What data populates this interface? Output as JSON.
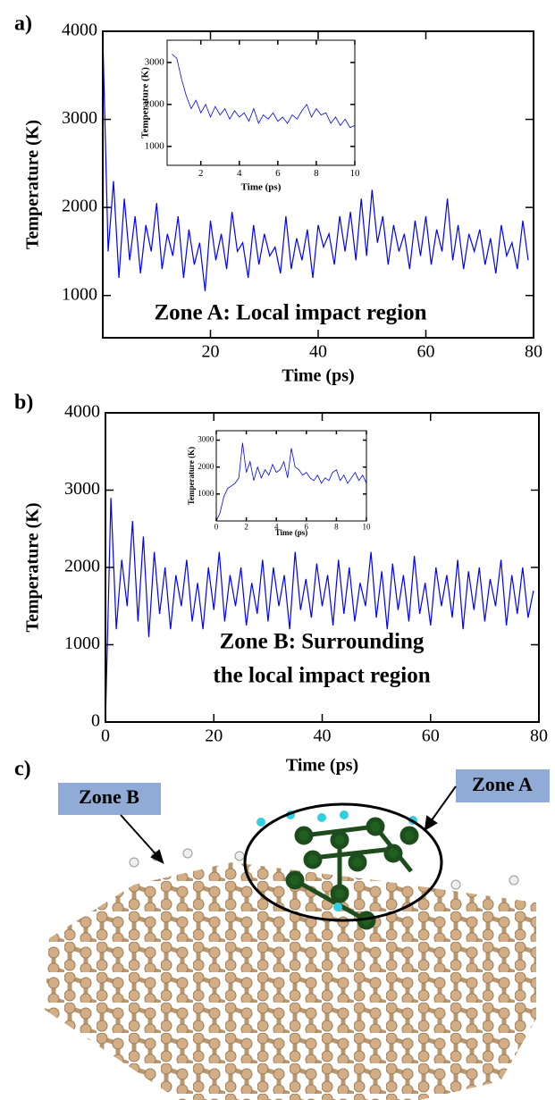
{
  "chart_data": [
    {
      "type": "line",
      "label": "a)",
      "y_label": "Temperature (K)",
      "x_label": "Time (ps)",
      "annotation": "Zone A: Local impact region",
      "color": "#0000ff",
      "xlim": [
        0,
        80
      ],
      "xticks": [
        20,
        40,
        60,
        80
      ],
      "ylim": [
        520,
        4000
      ],
      "yticks": [
        1000,
        2000,
        3000,
        4000
      ],
      "x": [
        0,
        1,
        2,
        3,
        4,
        5,
        6,
        7,
        8,
        9,
        10,
        11,
        12,
        13,
        14,
        15,
        16,
        17,
        18,
        19,
        20,
        21,
        22,
        23,
        24,
        25,
        26,
        27,
        28,
        29,
        30,
        31,
        32,
        33,
        34,
        35,
        36,
        37,
        38,
        39,
        40,
        41,
        42,
        43,
        44,
        45,
        46,
        47,
        48,
        49,
        50,
        51,
        52,
        53,
        54,
        55,
        56,
        57,
        58,
        59,
        60,
        61,
        62,
        63,
        64,
        65,
        66,
        67,
        68,
        69,
        70,
        71,
        72,
        73,
        74,
        75,
        76,
        77,
        78,
        79
      ],
      "values": [
        3950,
        1500,
        2300,
        1200,
        2100,
        1400,
        1900,
        1250,
        1800,
        1500,
        2050,
        1300,
        1700,
        1450,
        1900,
        1200,
        1750,
        1350,
        1600,
        1050,
        1850,
        1400,
        1700,
        1300,
        1950,
        1500,
        1600,
        1200,
        1800,
        1350,
        1700,
        1450,
        1550,
        1250,
        1900,
        1300,
        1650,
        1400,
        1750,
        1200,
        1800,
        1550,
        1700,
        1350,
        1900,
        1500,
        1950,
        1400,
        2100,
        1450,
        2200,
        1600,
        1900,
        1350,
        1800,
        1500,
        1700,
        1300,
        1850,
        1450,
        1900,
        1350,
        1750,
        1500,
        2100,
        1400,
        1800,
        1300,
        1700,
        1500,
        1750,
        1350,
        1650,
        1250,
        1800,
        1450,
        1600,
        1300,
        1850,
        1400
      ]
    },
    {
      "type": "line",
      "y_label": "Temperature (K)",
      "x_label": "Time (ps)",
      "color": "#0000ff",
      "xlim": [
        0.25,
        10
      ],
      "xticks": [
        2,
        4,
        6,
        8,
        10
      ],
      "ylim": [
        550,
        3530
      ],
      "yticks": [
        1000,
        2000,
        3000
      ],
      "x": [
        0.5,
        0.75,
        1,
        1.25,
        1.5,
        1.75,
        2,
        2.25,
        2.5,
        2.75,
        3,
        3.25,
        3.5,
        3.75,
        4,
        4.25,
        4.5,
        4.75,
        5,
        5.25,
        5.5,
        5.75,
        6,
        6.25,
        6.5,
        6.75,
        7,
        7.25,
        7.5,
        7.75,
        8,
        8.25,
        8.5,
        8.75,
        9,
        9.25,
        9.5,
        9.75,
        10
      ],
      "values": [
        3200,
        3100,
        2600,
        2200,
        1900,
        2100,
        1800,
        2000,
        1700,
        1950,
        1750,
        1900,
        1650,
        1850,
        1700,
        1800,
        1600,
        1900,
        1550,
        1750,
        1650,
        1800,
        1600,
        1700,
        1550,
        1750,
        1650,
        1850,
        2000,
        1700,
        1900,
        1750,
        1800,
        1550,
        1700,
        1500,
        1650,
        1450,
        1500
      ]
    },
    {
      "type": "line",
      "label": "b)",
      "y_label": "Temperature (K)",
      "x_label": "Time (ps)",
      "annotation": [
        "Zone B: Surrounding",
        "the local impact region"
      ],
      "color": "#0000ff",
      "xlim": [
        0,
        80
      ],
      "xticks": [
        0,
        20,
        40,
        60,
        80
      ],
      "ylim": [
        0,
        4000
      ],
      "yticks": [
        0,
        1000,
        2000,
        3000,
        4000
      ],
      "x": [
        0,
        1,
        2,
        3,
        4,
        5,
        6,
        7,
        8,
        9,
        10,
        11,
        12,
        13,
        14,
        15,
        16,
        17,
        18,
        19,
        20,
        21,
        22,
        23,
        24,
        25,
        26,
        27,
        28,
        29,
        30,
        31,
        32,
        33,
        34,
        35,
        36,
        37,
        38,
        39,
        40,
        41,
        42,
        43,
        44,
        45,
        46,
        47,
        48,
        49,
        50,
        51,
        52,
        53,
        54,
        55,
        56,
        57,
        58,
        59,
        60,
        61,
        62,
        63,
        64,
        65,
        66,
        67,
        68,
        69,
        70,
        71,
        72,
        73,
        74,
        75,
        76,
        77,
        78,
        79
      ],
      "values": [
        0,
        2900,
        1200,
        2100,
        1500,
        2600,
        1300,
        2400,
        1100,
        2200,
        1400,
        2000,
        1200,
        1900,
        1500,
        2100,
        1300,
        1800,
        1200,
        2000,
        1450,
        2200,
        1300,
        1900,
        1500,
        2000,
        1250,
        1800,
        1400,
        2100,
        1300,
        2000,
        1500,
        1900,
        1200,
        2200,
        1450,
        1850,
        1350,
        2050,
        1500,
        1900,
        1250,
        2100,
        1400,
        2000,
        1300,
        1800,
        1500,
        2200,
        1350,
        1950,
        1200,
        2050,
        1450,
        1900,
        1300,
        2150,
        1400,
        1800,
        1250,
        2000,
        1500,
        1900,
        1350,
        2100,
        1200,
        1950,
        1450,
        2000,
        1300,
        1850,
        1500,
        2100,
        1250,
        1900,
        1400,
        2000,
        1350,
        1700
      ]
    },
    {
      "type": "line",
      "y_label": "Temperature (K)",
      "x_label": "Time (ps)",
      "color": "#0000ff",
      "xlim": [
        0,
        10
      ],
      "xticks": [
        0,
        2,
        4,
        6,
        8,
        10
      ],
      "ylim": [
        0,
        3350
      ],
      "yticks": [
        1000,
        2000,
        3000
      ],
      "x": [
        0,
        0.25,
        0.5,
        0.75,
        1,
        1.25,
        1.5,
        1.75,
        2,
        2.25,
        2.5,
        2.75,
        3,
        3.25,
        3.5,
        3.75,
        4,
        4.25,
        4.5,
        4.75,
        5,
        5.25,
        5.5,
        5.75,
        6,
        6.25,
        6.5,
        6.75,
        7,
        7.25,
        7.5,
        7.75,
        8,
        8.25,
        8.5,
        8.75,
        9,
        9.25,
        9.5,
        9.75,
        10
      ],
      "values": [
        0,
        300,
        900,
        1200,
        1300,
        1400,
        1600,
        2900,
        1800,
        2200,
        1500,
        2000,
        1600,
        1900,
        1700,
        2100,
        1800,
        1900,
        2200,
        1600,
        2700,
        2000,
        1900,
        1700,
        1800,
        1600,
        1500,
        1700,
        1400,
        1600,
        1500,
        1800,
        1900,
        1500,
        1700,
        1400,
        1600,
        1800,
        1500,
        1700,
        1400
      ]
    }
  ],
  "panel_c": {
    "label": "c)",
    "zone_a": "Zone A",
    "zone_b": "Zone B"
  }
}
